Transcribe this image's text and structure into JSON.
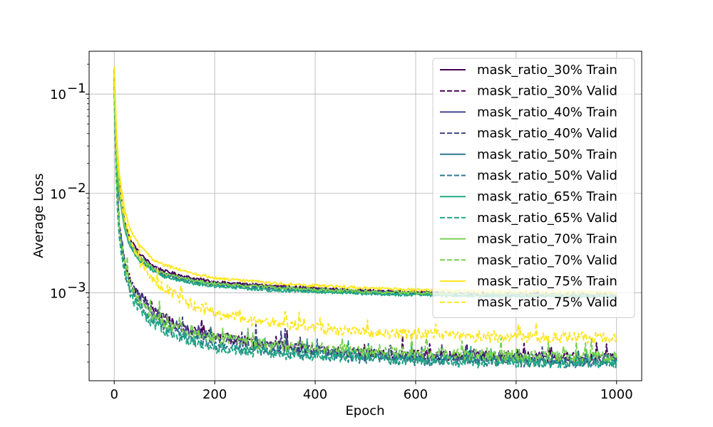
{
  "chart_data": {
    "type": "line",
    "title": "",
    "xlabel": "Epoch",
    "ylabel": "Average Loss",
    "xlim": [
      -50,
      1050
    ],
    "ylim": [
      0.00013,
      0.27
    ],
    "yscale": "log",
    "grid": true,
    "legend_position": "top-right",
    "x_ticks": [
      0,
      200,
      400,
      600,
      800,
      1000
    ],
    "x_tick_labels": [
      "0",
      "200",
      "400",
      "600",
      "800",
      "1000"
    ],
    "y_ticks": [
      0.001,
      0.01,
      0.1
    ],
    "y_tick_labels": [
      "10",
      "10",
      "10"
    ],
    "y_tick_exponents": [
      "−3",
      "−2",
      "−1"
    ],
    "series": [
      {
        "name": "mask_ratio_30% Train",
        "color": "#440154",
        "dash": "solid",
        "x": [
          0,
          5,
          10,
          20,
          30,
          50,
          75,
          100,
          150,
          200,
          300,
          400,
          500,
          600,
          700,
          800,
          900,
          1000
        ],
        "y": [
          0.18,
          0.03,
          0.012,
          0.0055,
          0.0036,
          0.0025,
          0.0019,
          0.00165,
          0.00142,
          0.00128,
          0.00118,
          0.00111,
          0.00105,
          0.00101,
          0.00099,
          0.00098,
          0.00097,
          0.00097
        ]
      },
      {
        "name": "mask_ratio_30% Valid",
        "color": "#440154",
        "dash": "dashed",
        "x": [
          0,
          5,
          10,
          20,
          30,
          50,
          75,
          100,
          150,
          200,
          300,
          400,
          500,
          600,
          700,
          800,
          900,
          1000
        ],
        "y": [
          0.15,
          0.015,
          0.005,
          0.0022,
          0.0014,
          0.00095,
          0.00068,
          0.00055,
          0.00042,
          0.00036,
          0.0003,
          0.00027,
          0.00025,
          0.00024,
          0.00023,
          0.00023,
          0.00022,
          0.00022
        ]
      },
      {
        "name": "mask_ratio_40% Train",
        "color": "#414487",
        "dash": "solid",
        "x": [
          0,
          5,
          10,
          20,
          30,
          50,
          75,
          100,
          150,
          200,
          300,
          400,
          500,
          600,
          700,
          800,
          900,
          1000
        ],
        "y": [
          0.17,
          0.025,
          0.011,
          0.005,
          0.0033,
          0.0023,
          0.0018,
          0.00155,
          0.00135,
          0.00124,
          0.00114,
          0.00108,
          0.00103,
          0.001,
          0.00098,
          0.00097,
          0.00096,
          0.00096
        ]
      },
      {
        "name": "mask_ratio_40% Valid",
        "color": "#414487",
        "dash": "dashed",
        "x": [
          0,
          5,
          10,
          20,
          30,
          50,
          75,
          100,
          150,
          200,
          300,
          400,
          500,
          600,
          700,
          800,
          900,
          1000
        ],
        "y": [
          0.14,
          0.014,
          0.0048,
          0.0021,
          0.0013,
          0.0009,
          0.00066,
          0.00053,
          0.00041,
          0.00035,
          0.00029,
          0.00026,
          0.00024,
          0.00023,
          0.00022,
          0.00022,
          0.00021,
          0.00021
        ]
      },
      {
        "name": "mask_ratio_50% Train",
        "color": "#2a788e",
        "dash": "solid",
        "x": [
          0,
          5,
          10,
          20,
          30,
          50,
          75,
          100,
          150,
          200,
          300,
          400,
          500,
          600,
          700,
          800,
          900,
          1000
        ],
        "y": [
          0.16,
          0.022,
          0.0105,
          0.0048,
          0.0032,
          0.0022,
          0.00175,
          0.0015,
          0.0013,
          0.0012,
          0.0011,
          0.00105,
          0.001,
          0.00097,
          0.00095,
          0.00094,
          0.00093,
          0.00093
        ]
      },
      {
        "name": "mask_ratio_50% Valid",
        "color": "#2a788e",
        "dash": "dashed",
        "x": [
          0,
          5,
          10,
          20,
          30,
          50,
          75,
          100,
          150,
          200,
          300,
          400,
          500,
          600,
          700,
          800,
          900,
          1000
        ],
        "y": [
          0.12,
          0.011,
          0.004,
          0.0018,
          0.0011,
          0.00075,
          0.00055,
          0.00045,
          0.00035,
          0.0003,
          0.00026,
          0.00024,
          0.00022,
          0.00021,
          0.00021,
          0.0002,
          0.0002,
          0.0002
        ]
      },
      {
        "name": "mask_ratio_65% Train",
        "color": "#22a884",
        "dash": "solid",
        "x": [
          0,
          5,
          10,
          20,
          30,
          50,
          75,
          100,
          150,
          200,
          300,
          400,
          500,
          600,
          700,
          800,
          900,
          1000
        ],
        "y": [
          0.15,
          0.02,
          0.0098,
          0.0045,
          0.003,
          0.0021,
          0.0017,
          0.00145,
          0.00126,
          0.00116,
          0.00107,
          0.00102,
          0.00098,
          0.00095,
          0.00093,
          0.00092,
          0.00092,
          0.00091
        ]
      },
      {
        "name": "mask_ratio_65% Valid",
        "color": "#22a884",
        "dash": "dashed",
        "x": [
          0,
          5,
          10,
          20,
          30,
          50,
          75,
          100,
          150,
          200,
          300,
          400,
          500,
          600,
          700,
          800,
          900,
          1000
        ],
        "y": [
          0.1,
          0.009,
          0.0035,
          0.0016,
          0.001,
          0.0007,
          0.0005,
          0.00042,
          0.00033,
          0.00028,
          0.00025,
          0.00023,
          0.00022,
          0.00021,
          0.0002,
          0.0002,
          0.0002,
          0.0002
        ]
      },
      {
        "name": "mask_ratio_70% Train",
        "color": "#7ad151",
        "dash": "solid",
        "x": [
          0,
          5,
          10,
          20,
          30,
          50,
          75,
          100,
          150,
          200,
          300,
          400,
          500,
          600,
          700,
          800,
          900,
          1000
        ],
        "y": [
          0.17,
          0.024,
          0.0108,
          0.005,
          0.0033,
          0.0023,
          0.0018,
          0.00155,
          0.00135,
          0.00124,
          0.00114,
          0.00108,
          0.00103,
          0.001,
          0.00098,
          0.00097,
          0.00096,
          0.00096
        ]
      },
      {
        "name": "mask_ratio_70% Valid",
        "color": "#7ad151",
        "dash": "dashed",
        "x": [
          0,
          5,
          10,
          20,
          30,
          50,
          75,
          100,
          150,
          200,
          300,
          400,
          500,
          600,
          700,
          800,
          900,
          1000
        ],
        "y": [
          0.13,
          0.012,
          0.0045,
          0.0021,
          0.0012,
          0.0008,
          0.0006,
          0.0005,
          0.0004,
          0.00035,
          0.0003,
          0.00028,
          0.00026,
          0.00025,
          0.00024,
          0.00023,
          0.00023,
          0.00023
        ]
      },
      {
        "name": "mask_ratio_75% Train",
        "color": "#fde725",
        "dash": "solid",
        "x": [
          0,
          5,
          10,
          20,
          30,
          50,
          75,
          100,
          150,
          200,
          300,
          400,
          500,
          600,
          700,
          800,
          900,
          1000
        ],
        "y": [
          0.19,
          0.035,
          0.016,
          0.0072,
          0.0045,
          0.003,
          0.0022,
          0.0019,
          0.00158,
          0.0014,
          0.00126,
          0.00118,
          0.00112,
          0.00107,
          0.00104,
          0.00102,
          0.00101,
          0.001
        ]
      },
      {
        "name": "mask_ratio_75% Valid",
        "color": "#fde725",
        "dash": "dashed",
        "x": [
          0,
          5,
          10,
          20,
          30,
          50,
          75,
          100,
          150,
          200,
          300,
          400,
          500,
          600,
          700,
          800,
          900,
          1000
        ],
        "y": [
          0.16,
          0.028,
          0.013,
          0.006,
          0.0036,
          0.0021,
          0.0014,
          0.0011,
          0.00078,
          0.00062,
          0.0005,
          0.00044,
          0.0004,
          0.00038,
          0.00036,
          0.00036,
          0.00035,
          0.00035
        ]
      }
    ]
  }
}
